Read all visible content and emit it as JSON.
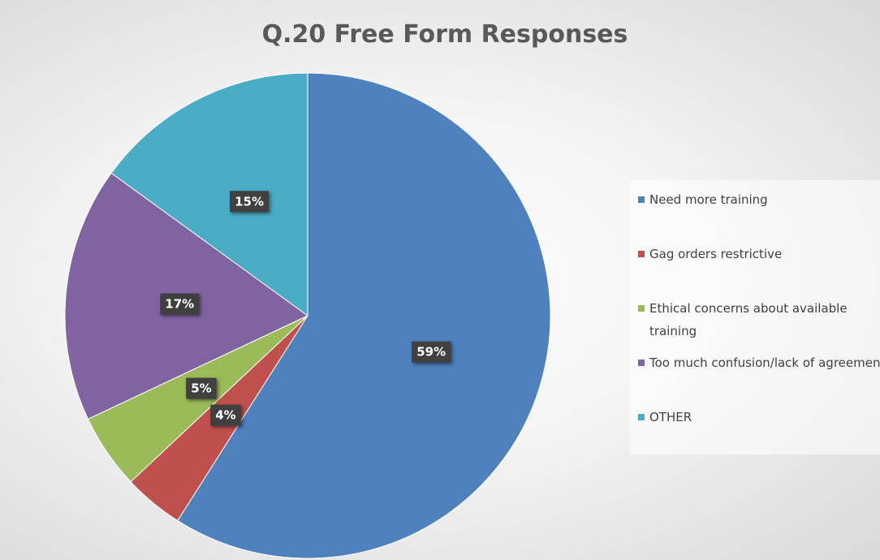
{
  "chart_data": {
    "type": "pie",
    "title": "Q.20 Free Form Responses",
    "categories": [
      "Need more training",
      "Gag orders restrictive",
      "Ethical concerns about available training",
      "Too much confusion/lack of agreement",
      "OTHER"
    ],
    "values": [
      59,
      4,
      5,
      17,
      15
    ],
    "value_labels": [
      "59%",
      "4%",
      "5%",
      "17%",
      "15%"
    ],
    "colors": [
      "#4f81bd",
      "#c0504d",
      "#9bbb59",
      "#8064a2",
      "#4bacc6"
    ],
    "legend": "right"
  }
}
